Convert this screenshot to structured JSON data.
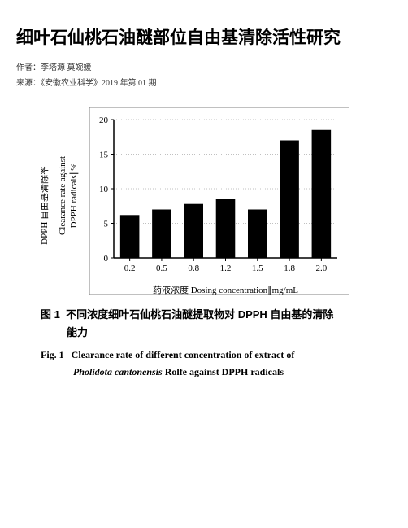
{
  "title": "细叶石仙桃石油醚部位自由基清除活性研究",
  "author_line": "作者：李塔源 莫婉媛",
  "source_line": "来源：《安徽农业科学》2019 年第 01 期",
  "chart": {
    "type": "bar",
    "categories": [
      "0.2",
      "0.5",
      "0.8",
      "1.2",
      "1.5",
      "1.8",
      "2.0"
    ],
    "values": [
      6.2,
      7.0,
      7.8,
      8.5,
      7.0,
      17.0,
      18.5
    ],
    "bar_color": "#000000",
    "background_color": "#ffffff",
    "grid_color": "#808080",
    "ylim": [
      0,
      20
    ],
    "ytick_step": 5,
    "yticks": [
      0,
      5,
      10,
      15,
      20
    ],
    "bar_width": 0.6,
    "ylabel_cn": "DPPH 自由基清除率",
    "ylabel_en_line1": "Clearance rate against",
    "ylabel_en_line2": "DPPH radicals∥%",
    "xlabel": "药液浓度 Dosing concentration∥mg/mL",
    "ylabel_fontsize": 11,
    "xlabel_fontsize": 11,
    "tick_fontsize": 11,
    "border_color": "#808080"
  },
  "caption_cn_label": "图 1",
  "caption_cn_text1": "不同浓度细叶石仙桃石油醚提取物对 DPPH 自由基的清除",
  "caption_cn_text2": "能力",
  "caption_en_label": "Fig. 1",
  "caption_en_text1": "Clearance rate of different concentration of extract of",
  "caption_en_italic": "Pholidota cantonensis",
  "caption_en_text2": " Rolfe against DPPH radicals"
}
